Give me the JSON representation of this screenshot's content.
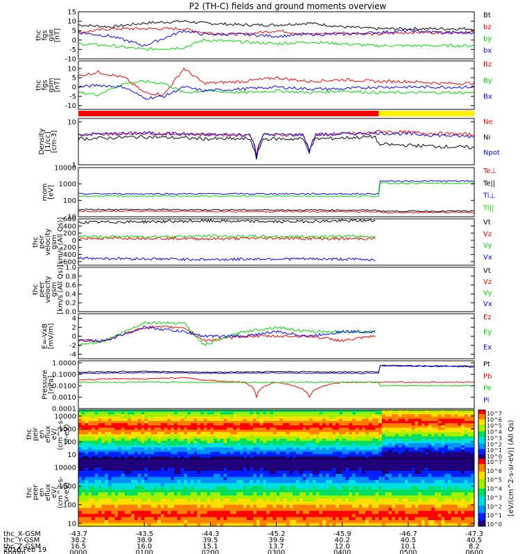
{
  "title": "P2 (TH-C) fields and ground moments overview",
  "colors": {
    "black": "#000000",
    "red": "#ff0000",
    "green": "#00dd00",
    "blue": "#0000ff",
    "yellow": "#ffee00"
  },
  "chart_data": [
    {
      "type": "line",
      "id": "fgs_gse",
      "ylabel": [
        "thc",
        "fgs",
        "gse",
        "[nT]"
      ],
      "ylim": [
        -10,
        15
      ],
      "yticks": [
        "15",
        "10",
        "5",
        "0",
        "-5",
        "-10"
      ],
      "legend": [
        {
          "label": "Bt",
          "color": "black"
        },
        {
          "label": "bz",
          "color": "red"
        },
        {
          "label": "by",
          "color": "green"
        },
        {
          "label": "bx",
          "color": "blue"
        }
      ],
      "series": [
        {
          "color": "black",
          "x": [
            0,
            0.5,
            1,
            1.6,
            1.9,
            2.5,
            3,
            3.5,
            4,
            4.5,
            5,
            5.5,
            6
          ],
          "y": [
            8,
            7,
            9,
            10,
            9,
            8,
            8,
            9,
            7,
            6,
            6,
            6,
            6
          ]
        },
        {
          "color": "red",
          "x": [
            0,
            0.5,
            1,
            1.6,
            1.9,
            2.5,
            3,
            3.5,
            4,
            4.5,
            5,
            5.5,
            6
          ],
          "y": [
            4,
            6,
            6,
            6,
            4,
            3,
            5,
            3,
            4,
            3,
            4,
            4,
            4
          ]
        },
        {
          "color": "green",
          "x": [
            0,
            0.5,
            1,
            1.6,
            1.9,
            2.5,
            3,
            3.5,
            4,
            4.5,
            5,
            5.5,
            6
          ],
          "y": [
            -2,
            -3,
            -5,
            -4,
            0,
            -1,
            -2,
            -1,
            -2,
            -3,
            -3,
            -3,
            -3
          ]
        },
        {
          "color": "blue",
          "x": [
            0,
            0.5,
            1,
            1.6,
            1.9,
            2.5,
            3,
            3.5,
            4,
            4.5,
            5,
            5.5,
            6
          ],
          "y": [
            4,
            2,
            -3,
            5,
            3,
            3,
            2,
            3,
            3,
            4,
            5,
            4,
            4
          ]
        }
      ]
    },
    {
      "type": "line",
      "id": "fgs_gsm",
      "ylabel": [
        "thc",
        "fgs",
        "gsm",
        "[nT]"
      ],
      "ylim": [
        -12,
        14
      ],
      "yticks": [
        "10",
        "5",
        "0",
        "-5",
        "-10"
      ],
      "legend": [
        {
          "label": "Bz",
          "color": "red"
        },
        {
          "label": "By",
          "color": "green"
        },
        {
          "label": "Bx",
          "color": "blue"
        }
      ],
      "series": [
        {
          "color": "red",
          "x": [
            0,
            0.3,
            0.7,
            1,
            1.3,
            1.6,
            1.9,
            2.5,
            3,
            3.5,
            4,
            4.5,
            5,
            5.5,
            6
          ],
          "y": [
            6,
            8,
            5,
            -3,
            -4,
            10,
            2,
            3,
            5,
            3,
            4,
            3,
            3,
            2,
            2
          ]
        },
        {
          "color": "green",
          "x": [
            0,
            0.3,
            0.7,
            1,
            1.3,
            1.6,
            1.9,
            2.5,
            3,
            3.5,
            4,
            4.5,
            5,
            5.5,
            6
          ],
          "y": [
            -3,
            -4,
            2,
            3,
            2,
            -3,
            -2,
            -3,
            -2,
            -3,
            -2,
            -3,
            -3,
            -3,
            -3
          ]
        },
        {
          "color": "blue",
          "x": [
            0,
            0.3,
            0.7,
            1,
            1.3,
            1.6,
            1.9,
            2.5,
            3,
            3.5,
            4,
            4.5,
            5,
            5.5,
            6
          ],
          "y": [
            0,
            1,
            0,
            -6,
            -5,
            0,
            -2,
            -1,
            0,
            -1,
            -1,
            0,
            0,
            0,
            0
          ]
        }
      ]
    },
    {
      "type": "bar",
      "id": "mode_bar",
      "segments": [
        {
          "x0": 0,
          "x1": 4.55,
          "color": "red"
        },
        {
          "x0": 4.55,
          "x1": 6,
          "color": "yellow"
        }
      ]
    },
    {
      "type": "line",
      "id": "density",
      "yscale": "log",
      "ylabel": [
        "Density",
        "[1/cc]",
        "[cm-3]"
      ],
      "ylim": [
        1,
        12
      ],
      "yticks": [
        "10",
        "1"
      ],
      "legend": [
        {
          "label": "Ne",
          "color": "red"
        },
        {
          "label": "Ni",
          "color": "black"
        },
        {
          "label": "Npot",
          "color": "blue"
        }
      ],
      "series": [
        {
          "color": "red",
          "x": [
            0,
            1,
            2,
            2.6,
            2.7,
            2.8,
            3.4,
            3.5,
            3.6,
            4.5,
            4.55,
            6
          ],
          "y": [
            5,
            5.5,
            5,
            5,
            1.8,
            5,
            5,
            2.2,
            5,
            5.5,
            6,
            5
          ]
        },
        {
          "color": "black",
          "x": [
            0,
            1,
            2,
            2.6,
            2.7,
            2.8,
            3.4,
            3.5,
            3.6,
            4.5,
            4.55,
            6
          ],
          "y": [
            4,
            4.5,
            4,
            4,
            1.3,
            4,
            4,
            2,
            4,
            4.5,
            3,
            2.5
          ]
        },
        {
          "color": "blue",
          "x": [
            0,
            1,
            2,
            2.6,
            2.7,
            2.8,
            3.4,
            3.5,
            3.6,
            4.5,
            4.55,
            6
          ],
          "y": [
            5,
            5.5,
            5,
            5,
            1.6,
            5,
            5,
            2.1,
            5,
            5.5,
            5.5,
            4.5
          ]
        }
      ]
    },
    {
      "type": "line",
      "id": "temperature",
      "yscale": "log",
      "ylabel": [
        "mom",
        "[eV]"
      ],
      "ylim": [
        10,
        10000
      ],
      "yticks": [
        "10000",
        "1000",
        "100",
        "10"
      ],
      "legend": [
        {
          "label": "Te⊥",
          "color": "red"
        },
        {
          "label": "Te||",
          "color": "black"
        },
        {
          "label": "Ti⊥",
          "color": "blue"
        },
        {
          "label": "Ti||",
          "color": "green"
        }
      ],
      "series": [
        {
          "color": "red",
          "x": [
            0,
            4.55,
            4.56,
            6
          ],
          "y": [
            22,
            20,
            18,
            18
          ]
        },
        {
          "color": "black",
          "x": [
            0,
            4.55,
            4.56,
            6
          ],
          "y": [
            28,
            25,
            22,
            22
          ]
        },
        {
          "color": "blue",
          "x": [
            0,
            4.55,
            4.56,
            6
          ],
          "y": [
            250,
            250,
            1500,
            1500
          ]
        },
        {
          "color": "green",
          "x": [
            0,
            4.55,
            4.56,
            6
          ],
          "y": [
            180,
            180,
            1100,
            1100
          ]
        }
      ]
    },
    {
      "type": "line",
      "id": "peir_velocity",
      "ylabel": [
        "thc",
        "peir",
        "velocity",
        "gsm",
        "[km/s (All Qs)]"
      ],
      "ylim": [
        -700,
        600
      ],
      "yticks": [
        "600",
        "400",
        "200",
        "0",
        "-200",
        "-400",
        "-600"
      ],
      "legend": [
        {
          "label": "Vt",
          "color": "black"
        },
        {
          "label": "Vz",
          "color": "red"
        },
        {
          "label": "Vy",
          "color": "green"
        },
        {
          "label": "Vx",
          "color": "blue"
        }
      ],
      "series": [
        {
          "color": "black",
          "x": [
            0,
            1,
            2,
            3,
            4,
            4.5
          ],
          "y": [
            500,
            520,
            540,
            520,
            540,
            550
          ]
        },
        {
          "color": "red",
          "x": [
            0,
            1,
            2,
            3,
            4,
            4.5
          ],
          "y": [
            50,
            60,
            40,
            60,
            40,
            50
          ]
        },
        {
          "color": "green",
          "x": [
            0,
            1,
            2,
            3,
            4,
            4.5
          ],
          "y": [
            100,
            100,
            120,
            100,
            110,
            100
          ]
        },
        {
          "color": "blue",
          "x": [
            0,
            1,
            2,
            3,
            4,
            4.5
          ],
          "y": [
            -500,
            -520,
            -540,
            -520,
            -530,
            -540
          ]
        }
      ]
    },
    {
      "type": "line",
      "id": "peer_velocity",
      "ylabel": [
        "thc",
        "peer",
        "velocity",
        "gsm",
        "[km/s (All Qs)]"
      ],
      "ylim": [
        0,
        1
      ],
      "yticks": [
        "1.0",
        "0.8",
        "0.6",
        "0.4",
        "0.2",
        "0.0"
      ],
      "legend": [
        {
          "label": "Vt",
          "color": "black"
        },
        {
          "label": "Vz",
          "color": "red"
        },
        {
          "label": "Vy",
          "color": "green"
        },
        {
          "label": "Vx",
          "color": "blue"
        }
      ],
      "series": []
    },
    {
      "type": "line",
      "id": "efield",
      "ylabel": [
        "E=-VxB",
        "[mV/m]"
      ],
      "ylim": [
        -5,
        5
      ],
      "yticks": [
        "4",
        "2",
        "0",
        "-2",
        "-4"
      ],
      "legend": [
        {
          "label": "Ez",
          "color": "red"
        },
        {
          "label": "Ey",
          "color": "green"
        },
        {
          "label": "Ex",
          "color": "blue"
        }
      ],
      "series": [
        {
          "color": "red",
          "x": [
            0,
            0.4,
            1,
            1.6,
            1.9,
            2.5,
            3,
            3.5,
            4,
            4.5
          ],
          "y": [
            -1,
            -1,
            2,
            2,
            -1,
            0,
            0,
            0,
            -1,
            0
          ]
        },
        {
          "color": "green",
          "x": [
            0,
            0.4,
            1,
            1.6,
            1.9,
            2.5,
            3,
            3.5,
            4,
            4.5
          ],
          "y": [
            -2,
            -1,
            3,
            3,
            -2,
            1,
            2,
            1,
            1,
            1
          ]
        },
        {
          "color": "blue",
          "x": [
            0,
            0.4,
            1,
            1.6,
            1.9,
            2.5,
            3,
            3.5,
            4,
            4.5
          ],
          "y": [
            -1,
            -1,
            2,
            1,
            0,
            0,
            1,
            0,
            1,
            1
          ]
        }
      ]
    },
    {
      "type": "line",
      "id": "pressure",
      "yscale": "log",
      "ylabel": [
        "Pressure",
        "[nPa]"
      ],
      "ylim": [
        0.0001,
        1.5
      ],
      "yticks": [
        "1.0000",
        "0.1000",
        "0.0100",
        "0.0010",
        "0.0001"
      ],
      "legend": [
        {
          "label": "Pt",
          "color": "black"
        },
        {
          "label": "Pb",
          "color": "red"
        },
        {
          "label": "Pe",
          "color": "green"
        },
        {
          "label": "Pi",
          "color": "blue"
        }
      ],
      "series": [
        {
          "color": "black",
          "x": [
            0,
            1,
            2,
            3,
            4,
            4.55,
            4.56,
            6
          ],
          "y": [
            0.15,
            0.18,
            0.15,
            0.17,
            0.16,
            0.16,
            0.6,
            0.5
          ]
        },
        {
          "color": "red",
          "x": [
            0,
            0.5,
            1,
            1.6,
            1.9,
            2.5,
            2.7,
            3,
            3.5,
            4,
            4.5,
            5,
            6
          ],
          "y": [
            0.03,
            0.04,
            0.04,
            0.05,
            0.03,
            0.02,
            0.001,
            0.02,
            0.001,
            0.02,
            0.02,
            0.02,
            0.02
          ]
        },
        {
          "color": "green",
          "x": [
            0,
            1,
            2,
            3,
            4,
            4.55,
            4.56,
            6
          ],
          "y": [
            0.02,
            0.02,
            0.02,
            0.02,
            0.02,
            0.02,
            0.01,
            0.01
          ]
        },
        {
          "color": "blue",
          "x": [
            0,
            1,
            2,
            3,
            4,
            4.55,
            4.56,
            6
          ],
          "y": [
            0.12,
            0.14,
            0.12,
            0.13,
            0.12,
            0.12,
            0.55,
            0.45
          ]
        }
      ]
    },
    {
      "type": "heatmap",
      "id": "peir_eflux",
      "yscale": "log",
      "ylabel": [
        "thc",
        "peir",
        "en",
        "eflux",
        "eV/",
        "(cm^2-s-",
        "sr-eV)"
      ],
      "ylim": [
        5,
        30000
      ],
      "yticks": [
        "10000",
        "1000",
        "100",
        "10"
      ],
      "ridge_energy": 1500
    },
    {
      "type": "heatmap",
      "id": "peer_eflux",
      "yscale": "log",
      "ylabel": [
        "thc",
        "peer",
        "en",
        "eflux",
        "eV/",
        "(cm^2-s-",
        "sr-eV)"
      ],
      "ylim": [
        7,
        30000
      ],
      "yticks": [
        "10000",
        "1000",
        "100",
        "10"
      ],
      "ridge_energy": 30
    }
  ],
  "colorbar": {
    "label": "[eV/(cm^2-s-sr-eV)] (All Qs)",
    "ticks": [
      "10^7",
      "10^6",
      "10^5",
      "10^4",
      "10^3",
      "10^2",
      "10^1",
      "10^0",
      "10^7",
      "10^6",
      "10^5",
      "10^4",
      "10^3",
      "10^2",
      "10^1",
      "10^0"
    ]
  },
  "xaxis": {
    "ticks": [
      "0000",
      "0100",
      "0200",
      "0300",
      "0400",
      "0500",
      "0600"
    ],
    "rows": [
      {
        "label": "thc_X-GSM",
        "values": [
          "-43.7",
          "-43.5",
          "-44.3",
          "-45.2",
          "-45.9",
          "-46.7",
          "-47.3"
        ]
      },
      {
        "label": "thc_Y-GSM",
        "values": [
          "38.2",
          "38.9",
          "39.5",
          "39.9",
          "40.2",
          "40.5",
          "40.5"
        ]
      },
      {
        "label": "thc_Z-GSM",
        "values": [
          "16.5",
          "16.0",
          "15.1",
          "13.7",
          "12.0",
          "10.1",
          "8.2"
        ]
      },
      {
        "label": "hhmm",
        "values": [
          "0000",
          "0100",
          "0200",
          "0300",
          "0400",
          "0500",
          "0600"
        ]
      }
    ],
    "date": "2016 Feb 19"
  }
}
